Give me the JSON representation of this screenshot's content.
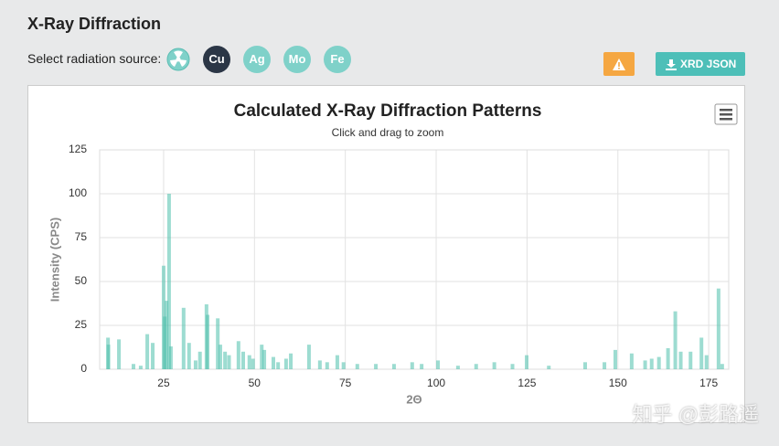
{
  "header": {
    "title": "X-Ray Diffraction",
    "source_label": "Select radiation source:",
    "sources": [
      "Cu",
      "Ag",
      "Mo",
      "Fe"
    ],
    "json_button": "XRD JSON"
  },
  "watermark": "知乎 @彭路遥",
  "chart_data": {
    "type": "bar",
    "title": "Calculated X-Ray Diffraction Patterns",
    "subtitle": "Click and drag to zoom",
    "x_label": "2Θ",
    "y_label": "Intensity (CPS)",
    "color": "#4dbfac",
    "x": [
      9.7,
      9.8,
      12.7,
      16.7,
      18.7,
      20.5,
      22,
      25,
      25.3,
      25.8,
      26.5,
      27,
      30.5,
      32,
      33.8,
      35,
      36.8,
      37.1,
      39.9,
      40.6,
      41.9,
      43,
      45.6,
      46.9,
      48.6,
      49.6,
      52,
      52.7,
      55.2,
      56.5,
      58.7,
      60,
      65,
      68,
      70,
      72.8,
      74.5,
      78.3,
      83.4,
      88.4,
      93.4,
      96,
      100.5,
      106,
      111,
      116,
      121,
      124.9,
      131,
      141,
      146.3,
      149.3,
      153.8,
      157.5,
      159.3,
      161.3,
      163.8,
      165.8,
      167.3,
      170,
      173,
      174.4,
      177.7,
      178.7
    ],
    "values": [
      18,
      14,
      17,
      3,
      2,
      20,
      15,
      59,
      30,
      39,
      100,
      13,
      35,
      15,
      5,
      10,
      37,
      31,
      29,
      14,
      10,
      8,
      16,
      10,
      8,
      6,
      14,
      11,
      7,
      4,
      6,
      9,
      14,
      5,
      4,
      8,
      4,
      3,
      3,
      3,
      4,
      3,
      5,
      2,
      3,
      4,
      3,
      8,
      2,
      4,
      4,
      11,
      9,
      5,
      6,
      7,
      12,
      33,
      10,
      10,
      18,
      8,
      46,
      3
    ],
    "xlim": [
      7.4,
      180.5
    ],
    "ylim": [
      0,
      125
    ],
    "xticks": [
      25,
      50,
      75,
      100,
      125,
      150,
      175
    ],
    "yticks": [
      0,
      25,
      50,
      75,
      100,
      125
    ],
    "grid": true
  }
}
